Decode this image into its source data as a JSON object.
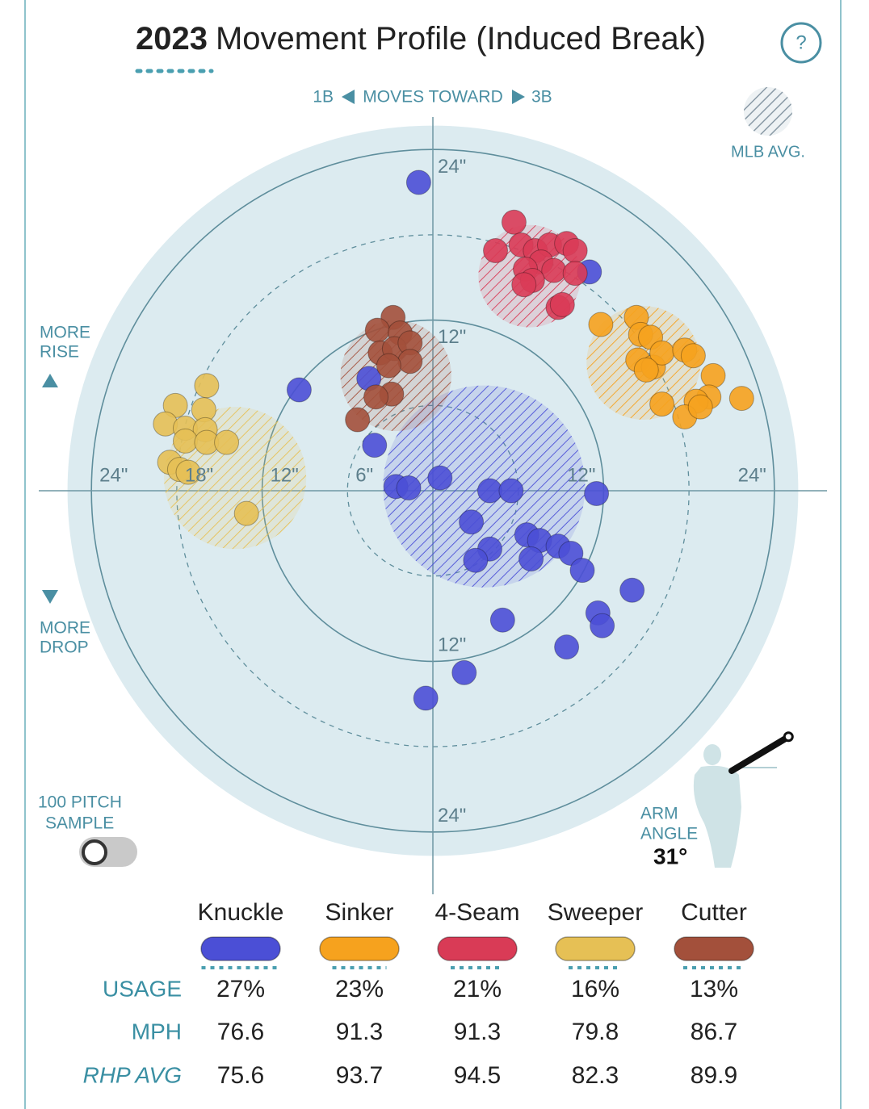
{
  "header": {
    "title_year": "2023",
    "title": "Movement Profile (Induced Break)",
    "help": "?"
  },
  "controls": {
    "sample_toggle": [
      "100 PITCH",
      "SAMPLE"
    ]
  },
  "chart_data": {
    "type": "scatter",
    "direction": {
      "left": "1B",
      "label": "MOVES TOWARD",
      "right": "3B"
    },
    "legend_mlb": "MLB AVG.",
    "rise_label": [
      "MORE",
      "RISE"
    ],
    "drop_label": [
      "MORE",
      "DROP"
    ],
    "arm_angle": {
      "label": [
        "ARM",
        "ANGLE"
      ],
      "value": 31,
      "value_label": "31°"
    },
    "xlim": [
      -27.7,
      27.7
    ],
    "ylim": [
      -28.4,
      26.3
    ],
    "xticks": [
      {
        "value": -24,
        "label": "24\""
      },
      {
        "value": -18,
        "label": "18\""
      },
      {
        "value": -12,
        "label": "12\""
      },
      {
        "value": -6,
        "label": "6\""
      },
      {
        "value": 12,
        "label": "12\""
      },
      {
        "value": 24,
        "label": "24\""
      }
    ],
    "yticks": [
      {
        "value": 24,
        "label": "24\""
      },
      {
        "value": 12,
        "label": "12\""
      },
      {
        "value": -12,
        "label": "12\""
      },
      {
        "value": -24,
        "label": "24\""
      }
    ],
    "series": [
      {
        "name": "Knuckle",
        "color": "#4b4fd6",
        "x": [
          -1.0,
          -9.4,
          -4.5,
          -4.1,
          -2.6,
          -1.7,
          0.5,
          4.0,
          5.5,
          11.5,
          2.7,
          4.0,
          3.0,
          6.6,
          7.5,
          6.9,
          8.8,
          9.7,
          10.5,
          14.0,
          11.6,
          11.9,
          4.9,
          9.4,
          2.2,
          -0.5,
          11.0
        ],
        "y": [
          21.7,
          7.1,
          7.9,
          3.2,
          0.3,
          0.2,
          0.9,
          0,
          0,
          -0.2,
          -2.2,
          -4.1,
          -4.9,
          -3.1,
          -3.5,
          -4.8,
          -3.9,
          -4.4,
          -5.6,
          -7.0,
          -8.6,
          -9.5,
          -9.1,
          -11.0,
          -12.8,
          -14.6,
          15.4
        ],
        "mlb_avg": {
          "x": 3.6,
          "y": 0.3,
          "r": 7.1
        }
      },
      {
        "name": "Sinker",
        "color": "#f6a21e",
        "x": [
          11.8,
          14.3,
          14.6,
          15.3,
          14.4,
          15.5,
          16.1,
          17.7,
          18.3,
          19.7,
          19.4,
          18.5,
          21.7,
          16.1,
          17.7,
          18.8,
          15.0
        ],
        "y": [
          11.7,
          12.2,
          11.0,
          10.8,
          9.2,
          8.7,
          9.7,
          9.9,
          9.5,
          8.1,
          6.6,
          6.3,
          6.5,
          6.1,
          5.2,
          5.9,
          8.5
        ],
        "mlb_avg": {
          "x": 14.8,
          "y": 9.0,
          "r": 4.0
        }
      },
      {
        "name": "4-Seam",
        "color": "#d93b56",
        "x": [
          5.7,
          4.4,
          6.2,
          7.2,
          8.2,
          9.4,
          10.0,
          7.6,
          6.5,
          8.5,
          10.0,
          7.0,
          6.4,
          8.8,
          9.1
        ],
        "y": [
          18.9,
          16.9,
          17.3,
          16.9,
          17.3,
          17.4,
          16.9,
          16.1,
          15.6,
          15.5,
          15.3,
          14.8,
          14.5,
          12.9,
          13.1
        ],
        "mlb_avg": {
          "x": 6.8,
          "y": 15.1,
          "r": 3.6
        }
      },
      {
        "name": "Sweeper",
        "color": "#e6c055",
        "x": [
          -15.9,
          -18.1,
          -16.1,
          -18.8,
          -17.4,
          -16.0,
          -17.4,
          -15.9,
          -14.5,
          -18.5,
          -17.8,
          -17.2,
          -13.1
        ],
        "y": [
          7.4,
          6.0,
          5.7,
          4.7,
          4.4,
          4.3,
          3.5,
          3.4,
          3.4,
          2.0,
          1.5,
          1.3,
          -1.6
        ],
        "mlb_avg": {
          "x": -13.9,
          "y": 0.9,
          "r": 5.0
        }
      },
      {
        "name": "Cutter",
        "color": "#a3503b",
        "x": [
          -2.8,
          -3.9,
          -2.3,
          -3.7,
          -2.7,
          -1.6,
          -1.6,
          -3.1,
          -2.9,
          -4.0,
          -5.3
        ],
        "y": [
          12.2,
          11.3,
          11.1,
          9.7,
          10.0,
          10.4,
          9.1,
          8.8,
          6.8,
          6.6,
          5.0
        ],
        "mlb_avg": {
          "x": -2.6,
          "y": 8.1,
          "r": 3.9
        }
      }
    ],
    "stats": {
      "rows": [
        {
          "label": "USAGE",
          "values": [
            27,
            23,
            21,
            16,
            13
          ],
          "value_labels": [
            "27%",
            "23%",
            "21%",
            "16%",
            "13%"
          ]
        },
        {
          "label": "MPH",
          "values": [
            76.6,
            91.3,
            91.3,
            79.8,
            86.7
          ]
        },
        {
          "label": "RHP AVG",
          "values": [
            75.6,
            93.7,
            94.5,
            82.3,
            89.9
          ]
        }
      ]
    }
  }
}
